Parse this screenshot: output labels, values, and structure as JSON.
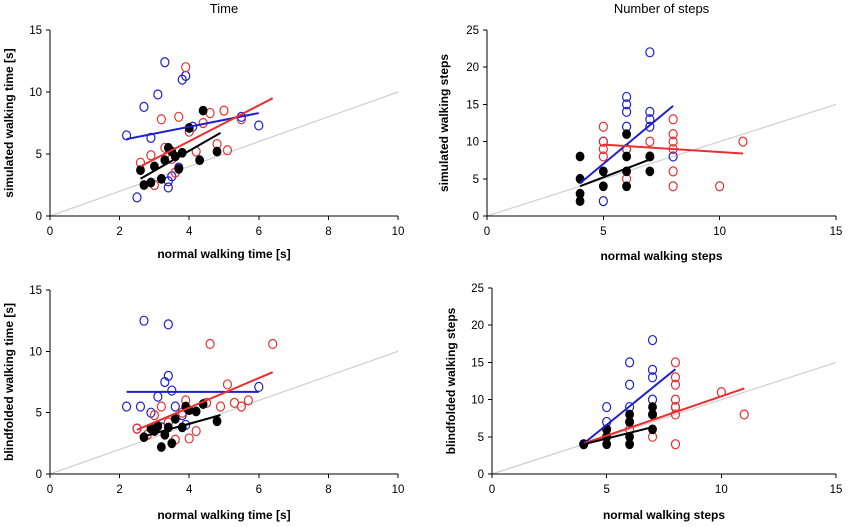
{
  "colors": {
    "blue": "#1f1fcc",
    "red": "#e83030",
    "black": "#000000",
    "identity": "#cfcfcf"
  },
  "chart_data": [
    {
      "id": "time-simulated",
      "type": "scatter",
      "title": "Time",
      "xlabel": "normal walking time [s]",
      "ylabel": "simulated walking time [s]",
      "xlim": [
        0,
        10
      ],
      "ylim": [
        0,
        15
      ],
      "xticks": [
        0,
        2,
        4,
        6,
        8,
        10
      ],
      "yticks": [
        0,
        5,
        10,
        15
      ],
      "identity_line": true,
      "series": [
        {
          "name": "blue",
          "marker": "open",
          "points": [
            [
              2.2,
              6.5
            ],
            [
              2.5,
              1.5
            ],
            [
              2.7,
              8.8
            ],
            [
              2.9,
              6.3
            ],
            [
              3.1,
              9.8
            ],
            [
              3.3,
              12.4
            ],
            [
              3.4,
              2.3
            ],
            [
              3.4,
              2.8
            ],
            [
              3.5,
              3.2
            ],
            [
              3.7,
              3.9
            ],
            [
              3.8,
              11.0
            ],
            [
              3.9,
              11.3
            ],
            [
              4.1,
              7.2
            ],
            [
              5.5,
              8.0
            ],
            [
              6.0,
              7.3
            ]
          ],
          "fit": [
            [
              2.2,
              6.2
            ],
            [
              6.0,
              8.3
            ]
          ]
        },
        {
          "name": "red",
          "marker": "open",
          "points": [
            [
              2.6,
              4.3
            ],
            [
              2.9,
              4.9
            ],
            [
              3.0,
              2.5
            ],
            [
              3.2,
              7.8
            ],
            [
              3.3,
              5.5
            ],
            [
              3.5,
              4.6
            ],
            [
              3.7,
              8.0
            ],
            [
              3.9,
              12.0
            ],
            [
              4.0,
              6.8
            ],
            [
              4.2,
              5.2
            ],
            [
              4.4,
              7.5
            ],
            [
              4.6,
              8.3
            ],
            [
              4.8,
              5.8
            ],
            [
              5.0,
              8.5
            ],
            [
              5.1,
              5.3
            ],
            [
              5.5,
              7.8
            ],
            [
              3.6,
              3.5
            ]
          ],
          "fit": [
            [
              2.6,
              4.0
            ],
            [
              6.4,
              9.5
            ]
          ]
        },
        {
          "name": "black",
          "marker": "filled",
          "points": [
            [
              2.6,
              3.7
            ],
            [
              2.7,
              2.5
            ],
            [
              2.9,
              2.7
            ],
            [
              3.0,
              4.0
            ],
            [
              3.2,
              3.0
            ],
            [
              3.3,
              4.5
            ],
            [
              3.4,
              5.5
            ],
            [
              3.5,
              5.2
            ],
            [
              3.6,
              4.8
            ],
            [
              3.7,
              3.8
            ],
            [
              3.8,
              5.1
            ],
            [
              4.0,
              7.1
            ],
            [
              4.3,
              4.5
            ],
            [
              4.4,
              8.5
            ],
            [
              4.8,
              5.2
            ]
          ],
          "fit": [
            [
              2.6,
              3.0
            ],
            [
              4.9,
              6.7
            ]
          ]
        }
      ]
    },
    {
      "id": "steps-simulated",
      "type": "scatter",
      "title": "Number of steps",
      "xlabel": "normal walking steps",
      "ylabel": "simulated walking steps",
      "xlim": [
        0,
        15
      ],
      "ylim": [
        0,
        25
      ],
      "xticks": [
        0,
        5,
        10,
        15
      ],
      "yticks": [
        0,
        5,
        10,
        15,
        20,
        25
      ],
      "identity_line": true,
      "series": [
        {
          "name": "blue",
          "marker": "open",
          "points": [
            [
              5,
              2
            ],
            [
              5,
              10
            ],
            [
              6,
              9
            ],
            [
              6,
              12
            ],
            [
              6,
              14
            ],
            [
              6,
              15
            ],
            [
              6,
              16
            ],
            [
              7,
              12
            ],
            [
              7,
              13
            ],
            [
              7,
              14
            ],
            [
              7,
              22
            ],
            [
              8,
              8
            ]
          ],
          "fit": [
            [
              4,
              4.4
            ],
            [
              8,
              14.8
            ]
          ]
        },
        {
          "name": "red",
          "marker": "open",
          "points": [
            [
              5,
              8
            ],
            [
              5,
              9
            ],
            [
              5,
              10
            ],
            [
              5,
              12
            ],
            [
              6,
              5
            ],
            [
              6,
              9
            ],
            [
              7,
              8
            ],
            [
              7,
              10
            ],
            [
              8,
              4
            ],
            [
              8,
              6
            ],
            [
              8,
              9
            ],
            [
              8,
              10
            ],
            [
              8,
              11
            ],
            [
              8,
              13
            ],
            [
              10,
              4
            ],
            [
              11,
              10
            ]
          ],
          "fit": [
            [
              5,
              9.6
            ],
            [
              11,
              8.4
            ]
          ]
        },
        {
          "name": "black",
          "marker": "filled",
          "points": [
            [
              4,
              2
            ],
            [
              4,
              3
            ],
            [
              4,
              5
            ],
            [
              4,
              8
            ],
            [
              5,
              4
            ],
            [
              5,
              6
            ],
            [
              6,
              4
            ],
            [
              6,
              6
            ],
            [
              6,
              8
            ],
            [
              6,
              11
            ],
            [
              7,
              6
            ],
            [
              7,
              8
            ]
          ],
          "fit": [
            [
              4,
              4.0
            ],
            [
              7,
              7.6
            ]
          ]
        }
      ]
    },
    {
      "id": "time-blindfolded",
      "type": "scatter",
      "title": "",
      "xlabel": "normal walking time [s]",
      "ylabel": "blindfolded walking time [s]",
      "xlim": [
        0,
        10
      ],
      "ylim": [
        0,
        15
      ],
      "xticks": [
        0,
        2,
        4,
        6,
        8,
        10
      ],
      "yticks": [
        0,
        5,
        10,
        15
      ],
      "identity_line": true,
      "series": [
        {
          "name": "blue",
          "marker": "open",
          "points": [
            [
              2.2,
              5.5
            ],
            [
              2.5,
              3.7
            ],
            [
              2.6,
              5.5
            ],
            [
              2.7,
              12.5
            ],
            [
              2.9,
              5.0
            ],
            [
              3.1,
              6.3
            ],
            [
              3.3,
              7.5
            ],
            [
              3.4,
              12.2
            ],
            [
              3.4,
              8.0
            ],
            [
              3.5,
              6.8
            ],
            [
              3.6,
              5.5
            ],
            [
              3.8,
              4.8
            ],
            [
              3.9,
              4.0
            ],
            [
              6.0,
              7.1
            ],
            [
              3.2,
              3.8
            ]
          ],
          "fit": [
            [
              2.2,
              6.7
            ],
            [
              6.0,
              6.7
            ]
          ]
        },
        {
          "name": "red",
          "marker": "open",
          "points": [
            [
              2.5,
              3.7
            ],
            [
              2.8,
              3.2
            ],
            [
              3.0,
              4.8
            ],
            [
              3.2,
              5.5
            ],
            [
              3.4,
              4.2
            ],
            [
              3.6,
              2.8
            ],
            [
              3.8,
              5.0
            ],
            [
              4.0,
              2.9
            ],
            [
              4.2,
              3.5
            ],
            [
              4.5,
              5.8
            ],
            [
              4.6,
              10.6
            ],
            [
              4.9,
              5.5
            ],
            [
              5.1,
              7.3
            ],
            [
              5.3,
              5.8
            ],
            [
              5.5,
              5.5
            ],
            [
              5.7,
              6.0
            ],
            [
              6.4,
              10.6
            ],
            [
              3.9,
              6.0
            ]
          ],
          "fit": [
            [
              2.5,
              3.6
            ],
            [
              6.4,
              8.3
            ]
          ]
        },
        {
          "name": "black",
          "marker": "filled",
          "points": [
            [
              2.7,
              3.0
            ],
            [
              2.9,
              3.7
            ],
            [
              3.0,
              3.5
            ],
            [
              3.1,
              3.9
            ],
            [
              3.2,
              2.2
            ],
            [
              3.4,
              3.8
            ],
            [
              3.5,
              2.5
            ],
            [
              3.6,
              4.5
            ],
            [
              3.8,
              3.8
            ],
            [
              3.9,
              5.5
            ],
            [
              4.0,
              5.2
            ],
            [
              4.2,
              5.1
            ],
            [
              4.4,
              5.7
            ],
            [
              4.8,
              4.3
            ],
            [
              3.3,
              3.2
            ]
          ],
          "fit": [
            [
              2.6,
              3.0
            ],
            [
              4.9,
              4.8
            ]
          ]
        }
      ]
    },
    {
      "id": "steps-blindfolded",
      "type": "scatter",
      "title": "",
      "xlabel": "normal walking steps",
      "ylabel": "blindfolded walking steps",
      "xlim": [
        0,
        15
      ],
      "ylim": [
        0,
        25
      ],
      "xticks": [
        0,
        5,
        10,
        15
      ],
      "yticks": [
        0,
        5,
        10,
        15,
        20,
        25
      ],
      "identity_line": true,
      "series": [
        {
          "name": "blue",
          "marker": "open",
          "points": [
            [
              4,
              4
            ],
            [
              5,
              7
            ],
            [
              5,
              9
            ],
            [
              6,
              9
            ],
            [
              6,
              12
            ],
            [
              6,
              15
            ],
            [
              7,
              10
            ],
            [
              7,
              13
            ],
            [
              7,
              14
            ],
            [
              7,
              18
            ],
            [
              8,
              9
            ]
          ],
          "fit": [
            [
              4,
              4.1
            ],
            [
              8,
              14.1
            ]
          ]
        },
        {
          "name": "red",
          "marker": "open",
          "points": [
            [
              5,
              5
            ],
            [
              5,
              6
            ],
            [
              6,
              6
            ],
            [
              6,
              7
            ],
            [
              7,
              5
            ],
            [
              7,
              8
            ],
            [
              8,
              4
            ],
            [
              8,
              8
            ],
            [
              8,
              9
            ],
            [
              8,
              10
            ],
            [
              8,
              12
            ],
            [
              8,
              13
            ],
            [
              8,
              15
            ],
            [
              10,
              11
            ],
            [
              11,
              8
            ]
          ],
          "fit": [
            [
              4,
              4.1
            ],
            [
              11,
              11.5
            ]
          ]
        },
        {
          "name": "black",
          "marker": "filled",
          "points": [
            [
              4,
              4
            ],
            [
              5,
              4
            ],
            [
              5,
              5
            ],
            [
              5,
              6
            ],
            [
              6,
              4
            ],
            [
              6,
              5
            ],
            [
              6,
              7
            ],
            [
              6,
              8
            ],
            [
              7,
              6
            ],
            [
              7,
              8
            ],
            [
              7,
              9
            ]
          ],
          "fit": [
            [
              4,
              4.0
            ],
            [
              7,
              6.3
            ]
          ]
        }
      ]
    }
  ]
}
